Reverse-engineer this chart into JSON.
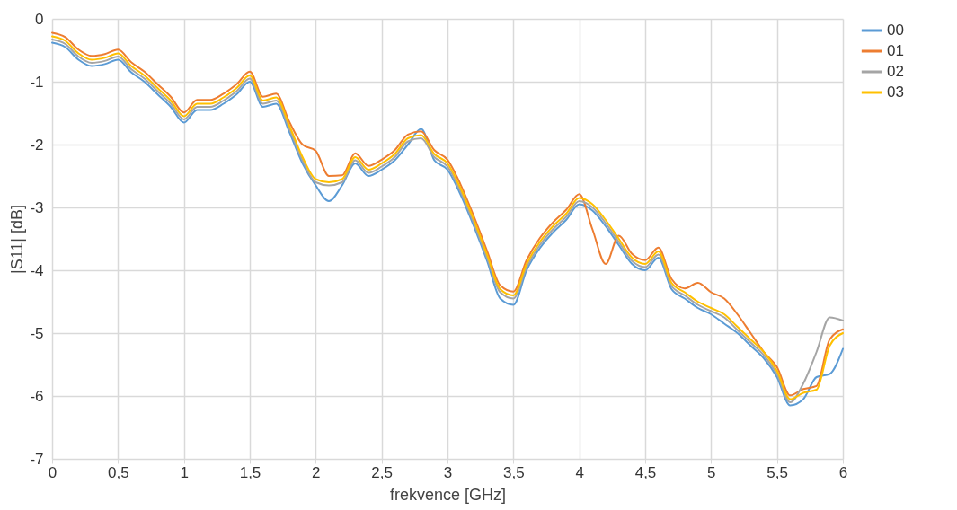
{
  "chart_data": {
    "type": "line",
    "xlabel": "frekvence [GHz]",
    "ylabel": "|S11| [dB]",
    "x": [
      0,
      0.1,
      0.2,
      0.3,
      0.4,
      0.5,
      0.6,
      0.7,
      0.8,
      0.9,
      1,
      1.1,
      1.2,
      1.3,
      1.4,
      1.5,
      1.6,
      1.7,
      1.8,
      1.9,
      2,
      2.1,
      2.2,
      2.3,
      2.4,
      2.5,
      2.6,
      2.7,
      2.8,
      2.9,
      3,
      3.1,
      3.2,
      3.3,
      3.4,
      3.5,
      3.6,
      3.7,
      3.8,
      3.9,
      4,
      4.1,
      4.2,
      4.3,
      4.4,
      4.5,
      4.6,
      4.7,
      4.8,
      4.9,
      5,
      5.1,
      5.2,
      5.3,
      5.4,
      5.5,
      5.6,
      5.7,
      5.8,
      5.9,
      6
    ],
    "series": [
      {
        "name": "00",
        "color": "#5b9bd5",
        "values": [
          -0.38,
          -0.45,
          -0.65,
          -0.75,
          -0.72,
          -0.65,
          -0.85,
          -1.0,
          -1.2,
          -1.4,
          -1.65,
          -1.45,
          -1.45,
          -1.35,
          -1.2,
          -1.0,
          -1.4,
          -1.35,
          -1.8,
          -2.3,
          -2.65,
          -2.9,
          -2.65,
          -2.3,
          -2.5,
          -2.4,
          -2.25,
          -2.0,
          -1.75,
          -2.25,
          -2.4,
          -2.8,
          -3.3,
          -3.85,
          -4.45,
          -4.55,
          -4.0,
          -3.65,
          -3.4,
          -3.2,
          -2.95,
          -3.05,
          -3.3,
          -3.6,
          -3.9,
          -4.0,
          -3.8,
          -4.3,
          -4.45,
          -4.6,
          -4.7,
          -4.85,
          -5.0,
          -5.2,
          -5.4,
          -5.7,
          -6.15,
          -6.05,
          -5.7,
          -5.65,
          -5.25
        ]
      },
      {
        "name": "01",
        "color": "#ed7d31",
        "values": [
          -0.22,
          -0.29,
          -0.49,
          -0.59,
          -0.56,
          -0.49,
          -0.69,
          -0.84,
          -1.04,
          -1.24,
          -1.49,
          -1.29,
          -1.29,
          -1.19,
          -1.04,
          -0.84,
          -1.24,
          -1.19,
          -1.64,
          -2.0,
          -2.1,
          -2.5,
          -2.49,
          -2.14,
          -2.34,
          -2.24,
          -2.09,
          -1.84,
          -1.79,
          -2.09,
          -2.24,
          -2.64,
          -3.14,
          -3.69,
          -4.24,
          -4.34,
          -3.84,
          -3.49,
          -3.24,
          -3.04,
          -2.79,
          -3.35,
          -3.9,
          -3.45,
          -3.74,
          -3.84,
          -3.64,
          -4.14,
          -4.29,
          -4.2,
          -4.35,
          -4.45,
          -4.7,
          -5.0,
          -5.3,
          -5.54,
          -5.99,
          -5.89,
          -5.84,
          -5.1,
          -4.94
        ]
      },
      {
        "name": "02",
        "color": "#a5a5a5",
        "values": [
          -0.33,
          -0.4,
          -0.6,
          -0.7,
          -0.67,
          -0.6,
          -0.8,
          -0.95,
          -1.15,
          -1.35,
          -1.6,
          -1.4,
          -1.4,
          -1.3,
          -1.15,
          -0.95,
          -1.35,
          -1.3,
          -1.75,
          -2.25,
          -2.6,
          -2.65,
          -2.6,
          -2.25,
          -2.45,
          -2.35,
          -2.2,
          -1.95,
          -1.9,
          -2.2,
          -2.35,
          -2.75,
          -3.25,
          -3.8,
          -4.35,
          -4.45,
          -3.95,
          -3.6,
          -3.35,
          -3.15,
          -2.9,
          -3.0,
          -3.25,
          -3.55,
          -3.85,
          -3.95,
          -3.75,
          -4.25,
          -4.4,
          -4.55,
          -4.65,
          -4.75,
          -4.95,
          -5.15,
          -5.35,
          -5.65,
          -6.1,
          -5.8,
          -5.3,
          -4.75,
          -4.8
        ]
      },
      {
        "name": "03",
        "color": "#ffc000",
        "values": [
          -0.28,
          -0.35,
          -0.55,
          -0.65,
          -0.62,
          -0.55,
          -0.75,
          -0.9,
          -1.1,
          -1.3,
          -1.55,
          -1.35,
          -1.35,
          -1.25,
          -1.1,
          -0.9,
          -1.3,
          -1.25,
          -1.7,
          -2.2,
          -2.55,
          -2.6,
          -2.55,
          -2.2,
          -2.4,
          -2.3,
          -2.15,
          -1.9,
          -1.85,
          -2.15,
          -2.3,
          -2.7,
          -3.2,
          -3.75,
          -4.3,
          -4.4,
          -3.9,
          -3.55,
          -3.3,
          -3.1,
          -2.85,
          -2.95,
          -3.2,
          -3.5,
          -3.8,
          -3.9,
          -3.7,
          -4.2,
          -4.35,
          -4.5,
          -4.6,
          -4.7,
          -4.9,
          -5.1,
          -5.3,
          -5.6,
          -6.05,
          -5.95,
          -5.9,
          -5.2,
          -5.0
        ]
      }
    ],
    "xlim": [
      0,
      6
    ],
    "xticks": [
      0,
      {
        "value": 0.5,
        "label": "0,5"
      },
      1,
      {
        "value": 1.5,
        "label": "1,5"
      },
      2,
      {
        "value": 2.5,
        "label": "2,5"
      },
      3,
      {
        "value": 3.5,
        "label": "3,5"
      },
      4,
      {
        "value": 4.5,
        "label": "4,5"
      },
      5,
      {
        "value": 5.5,
        "label": "5,5"
      },
      6
    ],
    "ylim": [
      -7,
      0
    ],
    "yticks": [
      -7,
      -6,
      -5,
      -4,
      -3,
      -2,
      -1,
      0
    ],
    "grid": true,
    "legend": "right",
    "marker": "none",
    "line_style": "solid"
  }
}
